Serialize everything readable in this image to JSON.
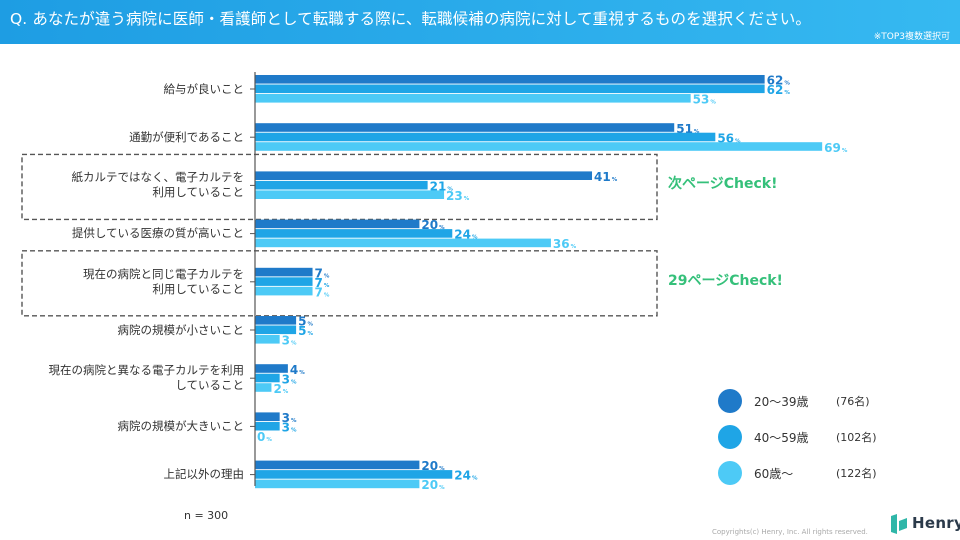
{
  "header": {
    "title": "Q. あなたが違う病院に医師・看護師として転職する際に、転職候補の病院に対して重視するものを選択ください。",
    "note": "※TOP3複数選択可"
  },
  "chart_data": {
    "type": "bar",
    "orientation": "horizontal",
    "percent_suffix": "%",
    "categories": [
      {
        "lines": [
          "給与が良いこと"
        ]
      },
      {
        "lines": [
          "通勤が便利であること"
        ]
      },
      {
        "lines": [
          "紙カルテではなく、電子カルテを",
          "利用していること"
        ]
      },
      {
        "lines": [
          "提供している医療の質が高いこと"
        ]
      },
      {
        "lines": [
          "現在の病院と同じ電子カルテを",
          "利用していること"
        ]
      },
      {
        "lines": [
          "病院の規模が小さいこと"
        ]
      },
      {
        "lines": [
          "現在の病院と異なる電子カルテを利用",
          "していること"
        ]
      },
      {
        "lines": [
          "病院の規模が大きいこと"
        ]
      },
      {
        "lines": [
          "上記以外の理由"
        ]
      }
    ],
    "series": [
      {
        "name": "20〜39歳",
        "count": "(76名)",
        "color": "#1f7ac9",
        "values": [
          62,
          51,
          41,
          20,
          7,
          5,
          4,
          3,
          20
        ]
      },
      {
        "name": "40〜59歳",
        "count": "(102名)",
        "color": "#1fa5e6",
        "values": [
          62,
          56,
          21,
          24,
          7,
          5,
          3,
          3,
          24
        ]
      },
      {
        "name": "60歳〜",
        "count": "(122名)",
        "color": "#4dcaf6",
        "values": [
          53,
          69,
          23,
          36,
          7,
          3,
          2,
          0,
          20
        ]
      }
    ],
    "xlim": [
      0,
      100
    ],
    "grid": false,
    "legend": "bottom-right",
    "highlights": [
      {
        "category_index": 2,
        "label": "次ページCheck!"
      },
      {
        "category_index": 4,
        "label": "29ページCheck!"
      }
    ]
  },
  "footer": {
    "n_note": "n = 300",
    "copyright": "Copyrights(c) Henry, Inc. All rights reserved.",
    "brand": "Henry"
  }
}
